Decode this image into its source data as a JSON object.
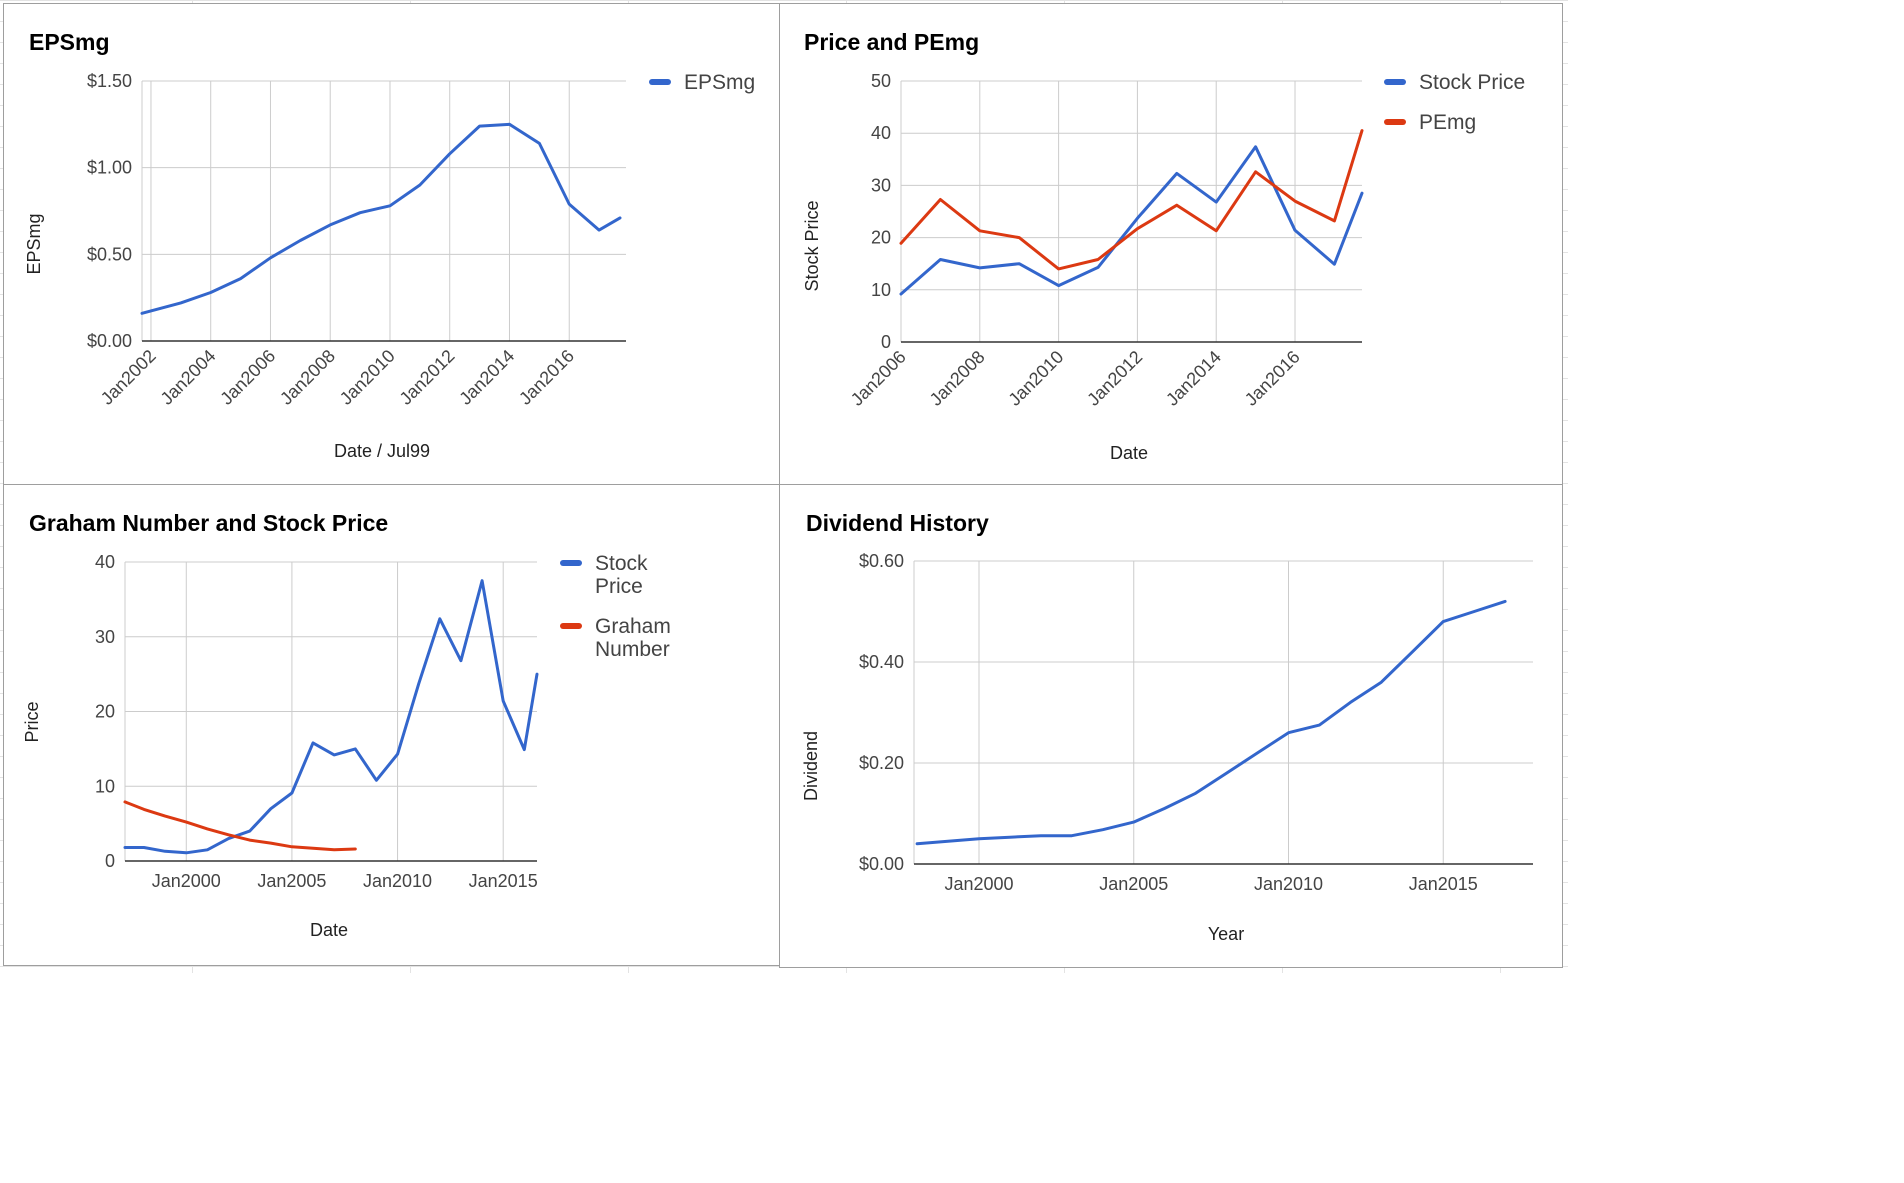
{
  "colors": {
    "blue": "#3366cc",
    "red": "#dc3912"
  },
  "charts": [
    {
      "type": "line",
      "title": "EPSmg",
      "xlabel": "Date / Jul99",
      "ylabel": "EPSmg",
      "x_axis": "date-rotated",
      "x_range": [
        2001.7,
        2017.9
      ],
      "ylim": [
        0,
        1.5
      ],
      "y_ticks": [
        {
          "value": 0,
          "label": "$0.00"
        },
        {
          "value": 0.5,
          "label": "$0.50"
        },
        {
          "value": 1.0,
          "label": "$1.00"
        },
        {
          "value": 1.5,
          "label": "$1.50"
        }
      ],
      "x_ticks": [
        {
          "value": 2002,
          "label": "Jan2002"
        },
        {
          "value": 2004,
          "label": "Jan2004"
        },
        {
          "value": 2006,
          "label": "Jan2006"
        },
        {
          "value": 2008,
          "label": "Jan2008"
        },
        {
          "value": 2010,
          "label": "Jan2010"
        },
        {
          "value": 2012,
          "label": "Jan2012"
        },
        {
          "value": 2014,
          "label": "Jan2014"
        },
        {
          "value": 2016,
          "label": "Jan2016"
        }
      ],
      "grid": true,
      "legend": "right",
      "series": [
        {
          "name": "EPSmg",
          "color": "#3366cc",
          "points": [
            [
              2001.7,
              0.16
            ],
            [
              2003,
              0.22
            ],
            [
              2004,
              0.28
            ],
            [
              2005,
              0.36
            ],
            [
              2006,
              0.48
            ],
            [
              2007,
              0.58
            ],
            [
              2008,
              0.67
            ],
            [
              2009,
              0.74
            ],
            [
              2010,
              0.78
            ],
            [
              2011,
              0.9
            ],
            [
              2012,
              1.08
            ],
            [
              2013,
              1.24
            ],
            [
              2014,
              1.25
            ],
            [
              2015,
              1.14
            ],
            [
              2016,
              0.79
            ],
            [
              2017,
              0.64
            ],
            [
              2017.7,
              0.71
            ]
          ]
        }
      ]
    },
    {
      "type": "line",
      "title": "Price and PEmg",
      "xlabel": "Date",
      "ylabel": "Stock Price",
      "x_axis": "date-rotated",
      "x_range": [
        2006,
        2017.7
      ],
      "ylim": [
        0,
        50
      ],
      "y_ticks": [
        {
          "value": 0,
          "label": "0"
        },
        {
          "value": 10,
          "label": "10"
        },
        {
          "value": 20,
          "label": "20"
        },
        {
          "value": 30,
          "label": "30"
        },
        {
          "value": 40,
          "label": "40"
        },
        {
          "value": 50,
          "label": "50"
        }
      ],
      "x_ticks": [
        {
          "value": 2006,
          "label": "Jan2006"
        },
        {
          "value": 2008,
          "label": "Jan2008"
        },
        {
          "value": 2010,
          "label": "Jan2010"
        },
        {
          "value": 2012,
          "label": "Jan2012"
        },
        {
          "value": 2014,
          "label": "Jan2014"
        },
        {
          "value": 2016,
          "label": "Jan2016"
        }
      ],
      "grid": true,
      "legend": "right",
      "series": [
        {
          "name": "Stock Price",
          "color": "#3366cc",
          "points": [
            [
              2006,
              9.2
            ],
            [
              2007,
              15.8
            ],
            [
              2008,
              14.2
            ],
            [
              2009,
              15
            ],
            [
              2010,
              10.8
            ],
            [
              2011,
              14.3
            ],
            [
              2012,
              23.7
            ],
            [
              2013,
              32.3
            ],
            [
              2014,
              26.8
            ],
            [
              2015,
              37.4
            ],
            [
              2016,
              21.4
            ],
            [
              2017,
              14.9
            ],
            [
              2017.7,
              28.5
            ]
          ]
        },
        {
          "name": "PEmg",
          "color": "#dc3912",
          "points": [
            [
              2006,
              18.9
            ],
            [
              2007,
              27.3
            ],
            [
              2008,
              21.3
            ],
            [
              2009,
              20
            ],
            [
              2010,
              14
            ],
            [
              2011,
              15.8
            ],
            [
              2012,
              21.7
            ],
            [
              2013,
              26.2
            ],
            [
              2014,
              21.3
            ],
            [
              2015,
              32.6
            ],
            [
              2016,
              27
            ],
            [
              2017,
              23.2
            ],
            [
              2017.7,
              40.5
            ]
          ]
        }
      ]
    },
    {
      "type": "line",
      "title": "Graham Number and Stock Price",
      "xlabel": "Date",
      "ylabel": "Price",
      "x_axis": "date-flat",
      "x_range": [
        1997.1,
        2016.6
      ],
      "ylim": [
        0,
        40
      ],
      "y_ticks": [
        {
          "value": 0,
          "label": "0"
        },
        {
          "value": 10,
          "label": "10"
        },
        {
          "value": 20,
          "label": "20"
        },
        {
          "value": 30,
          "label": "30"
        },
        {
          "value": 40,
          "label": "40"
        }
      ],
      "x_ticks": [
        {
          "value": 2000,
          "label": "Jan2000"
        },
        {
          "value": 2005,
          "label": "Jan2005"
        },
        {
          "value": 2010,
          "label": "Jan2010"
        },
        {
          "value": 2015,
          "label": "Jan2015"
        }
      ],
      "grid": true,
      "legend": "right",
      "series": [
        {
          "name": "Stock Price",
          "color": "#3366cc",
          "points": [
            [
              1997.1,
              1.8
            ],
            [
              1998,
              1.8
            ],
            [
              1999,
              1.3
            ],
            [
              2000,
              1.1
            ],
            [
              2001,
              1.5
            ],
            [
              2002,
              3
            ],
            [
              2003,
              4
            ],
            [
              2004,
              7
            ],
            [
              2005,
              9.1
            ],
            [
              2006,
              15.8
            ],
            [
              2007,
              14.2
            ],
            [
              2008,
              15
            ],
            [
              2009,
              10.8
            ],
            [
              2010,
              14.3
            ],
            [
              2011,
              23.7
            ],
            [
              2012,
              32.4
            ],
            [
              2013,
              26.8
            ],
            [
              2014,
              37.5
            ],
            [
              2015,
              21.4
            ],
            [
              2016,
              14.9
            ],
            [
              2016.6,
              25
            ]
          ]
        },
        {
          "name": "Graham Number",
          "color": "#dc3912",
          "points": [
            [
              1997.1,
              7.9
            ],
            [
              1998,
              6.9
            ],
            [
              1999,
              6
            ],
            [
              2000,
              5.2
            ],
            [
              2001,
              4.3
            ],
            [
              2002,
              3.5
            ],
            [
              2003,
              2.8
            ],
            [
              2004,
              2.4
            ],
            [
              2005,
              1.9
            ],
            [
              2006,
              1.7
            ],
            [
              2007,
              1.5
            ],
            [
              2008,
              1.6
            ]
          ]
        }
      ]
    },
    {
      "type": "line",
      "title": "Dividend History",
      "xlabel": "Year",
      "ylabel": "Dividend",
      "x_axis": "date-flat",
      "x_range": [
        1997.9,
        2017.9
      ],
      "ylim": [
        0,
        0.6
      ],
      "y_ticks": [
        {
          "value": 0,
          "label": "$0.00"
        },
        {
          "value": 0.2,
          "label": "$0.20"
        },
        {
          "value": 0.4,
          "label": "$0.40"
        },
        {
          "value": 0.6,
          "label": "$0.60"
        }
      ],
      "x_ticks": [
        {
          "value": 2000,
          "label": "Jan2000"
        },
        {
          "value": 2005,
          "label": "Jan2005"
        },
        {
          "value": 2010,
          "label": "Jan2010"
        },
        {
          "value": 2015,
          "label": "Jan2015"
        }
      ],
      "grid": true,
      "legend": "none",
      "series": [
        {
          "name": "",
          "color": "#3366cc",
          "points": [
            [
              1998,
              0.04
            ],
            [
              1999,
              0.045
            ],
            [
              2000,
              0.05
            ],
            [
              2001,
              0.053
            ],
            [
              2002,
              0.056
            ],
            [
              2003,
              0.056
            ],
            [
              2004,
              0.068
            ],
            [
              2005,
              0.083
            ],
            [
              2006,
              0.11
            ],
            [
              2007,
              0.14
            ],
            [
              2008,
              0.18
            ],
            [
              2009,
              0.22
            ],
            [
              2010,
              0.26
            ],
            [
              2011,
              0.275
            ],
            [
              2012,
              0.32
            ],
            [
              2013,
              0.36
            ],
            [
              2014,
              0.42
            ],
            [
              2015,
              0.48
            ],
            [
              2016,
              0.5
            ],
            [
              2017,
              0.52
            ]
          ]
        }
      ]
    }
  ]
}
